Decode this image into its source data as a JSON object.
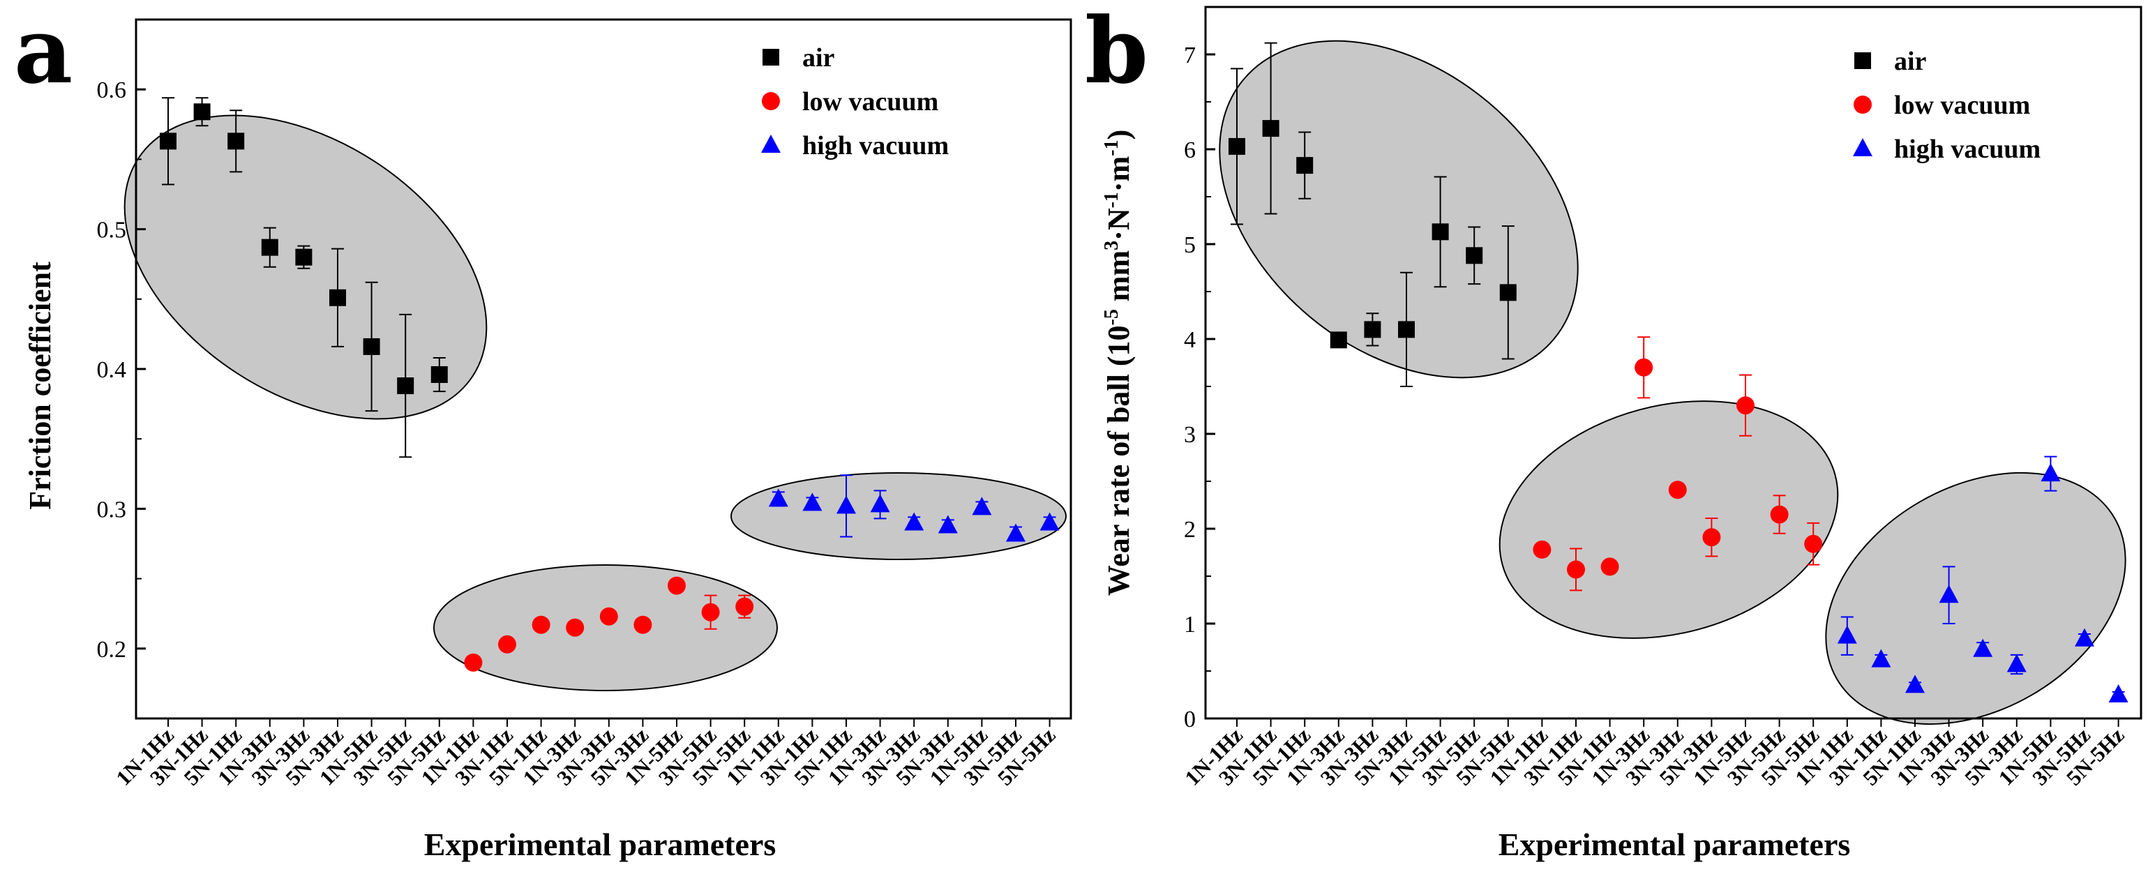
{
  "chart_data": [
    {
      "panel_label": "a",
      "type": "scatter",
      "xlabel": "Experimental parameters",
      "ylabel": "Friction coefficient",
      "ylim": [
        0.15,
        0.65
      ],
      "yticks": [
        "0.2",
        "0.3",
        "0.4",
        "0.5",
        "0.6"
      ],
      "ytick_values": [
        0.2,
        0.3,
        0.4,
        0.5,
        0.6
      ],
      "categories": [
        "1N-1Hz",
        "3N-1Hz",
        "5N-1Hz",
        "1N-3Hz",
        "3N-3Hz",
        "5N-3Hz",
        "1N-5Hz",
        "3N-5Hz",
        "5N-5Hz",
        "1N-1Hz",
        "3N-1Hz",
        "5N-1Hz",
        "1N-3Hz",
        "3N-3Hz",
        "5N-3Hz",
        "1N-5Hz",
        "3N-5Hz",
        "5N-5Hz",
        "1N-1Hz",
        "3N-1Hz",
        "5N-1Hz",
        "1N-3Hz",
        "3N-3Hz",
        "5N-3Hz",
        "1N-5Hz",
        "3N-5Hz",
        "5N-5Hz"
      ],
      "legend_position": "top-right",
      "series": [
        {
          "name": "air",
          "marker": "square",
          "color": "#000000",
          "start_index": 0,
          "values": [
            0.563,
            0.584,
            0.563,
            0.487,
            0.48,
            0.451,
            0.416,
            0.388,
            0.396
          ],
          "errors": [
            0.031,
            0.01,
            0.022,
            0.014,
            0.008,
            0.035,
            0.046,
            0.051,
            0.012
          ]
        },
        {
          "name": "low  vacuum",
          "marker": "circle",
          "color": "#ff0000",
          "start_index": 9,
          "values": [
            0.19,
            0.203,
            0.217,
            0.215,
            0.223,
            0.217,
            0.245,
            0.226,
            0.23
          ],
          "errors": [
            0.003,
            0.003,
            0.004,
            0.003,
            0.003,
            0.003,
            0.004,
            0.012,
            0.008
          ]
        },
        {
          "name": "high vacuum",
          "marker": "triangle",
          "color": "#0000ff",
          "start_index": 18,
          "values": [
            0.307,
            0.304,
            0.302,
            0.303,
            0.29,
            0.288,
            0.301,
            0.282,
            0.29
          ],
          "errors": [
            0.005,
            0.004,
            0.022,
            0.01,
            0.004,
            0.004,
            0.004,
            0.005,
            0.004
          ]
        }
      ]
    },
    {
      "panel_label": "b",
      "type": "scatter",
      "xlabel": "Experimental parameters",
      "ylabel_main": "Wear rate of ball (10",
      "ylabel_sup1": "-5",
      "ylabel_mid": " mm",
      "ylabel_sup2": "3",
      "ylabel_n": "·N",
      "ylabel_sup3": "-1",
      "ylabel_m": "·m",
      "ylabel_sup4": "-1",
      "ylabel_end": ")",
      "ylim": [
        0,
        7.5
      ],
      "yticks": [
        "0",
        "1",
        "2",
        "3",
        "4",
        "5",
        "6",
        "7"
      ],
      "ytick_values": [
        0,
        1,
        2,
        3,
        4,
        5,
        6,
        7
      ],
      "categories": [
        "1N-1Hz",
        "3N-1Hz",
        "5N-1Hz",
        "1N-3Hz",
        "3N-3Hz",
        "5N-3Hz",
        "1N-5Hz",
        "3N-5Hz",
        "5N-5Hz",
        "1N-1Hz",
        "3N-1Hz",
        "5N-1Hz",
        "1N-3Hz",
        "3N-3Hz",
        "5N-3Hz",
        "1N-5Hz",
        "3N-5Hz",
        "5N-5Hz",
        "1N-1Hz",
        "3N-1Hz",
        "5N-1Hz",
        "1N-3Hz",
        "3N-3Hz",
        "5N-3Hz",
        "1N-5Hz",
        "3N-5Hz",
        "5N-5Hz"
      ],
      "legend_position": "top-right",
      "series": [
        {
          "name": "air",
          "marker": "square",
          "color": "#000000",
          "start_index": 0,
          "values": [
            6.03,
            6.22,
            5.83,
            3.99,
            4.1,
            4.1,
            5.13,
            4.88,
            4.49
          ],
          "errors": [
            0.82,
            0.9,
            0.35,
            0.06,
            0.17,
            0.6,
            0.58,
            0.3,
            0.7
          ]
        },
        {
          "name": "low  vacuum",
          "marker": "circle",
          "color": "#ff0000",
          "start_index": 9,
          "values": [
            1.78,
            1.57,
            1.6,
            3.7,
            2.41,
            1.91,
            3.3,
            2.15,
            1.84
          ],
          "errors": [
            0.06,
            0.22,
            0.03,
            0.32,
            0.06,
            0.2,
            0.32,
            0.2,
            0.22
          ]
        },
        {
          "name": "high vacuum",
          "marker": "triangle",
          "color": "#0000ff",
          "start_index": 18,
          "values": [
            0.87,
            0.62,
            0.35,
            1.3,
            0.73,
            0.57,
            2.58,
            0.84,
            0.25
          ],
          "errors": [
            0.2,
            0.05,
            0.03,
            0.3,
            0.07,
            0.1,
            0.18,
            0.05,
            0.03
          ]
        }
      ]
    }
  ]
}
